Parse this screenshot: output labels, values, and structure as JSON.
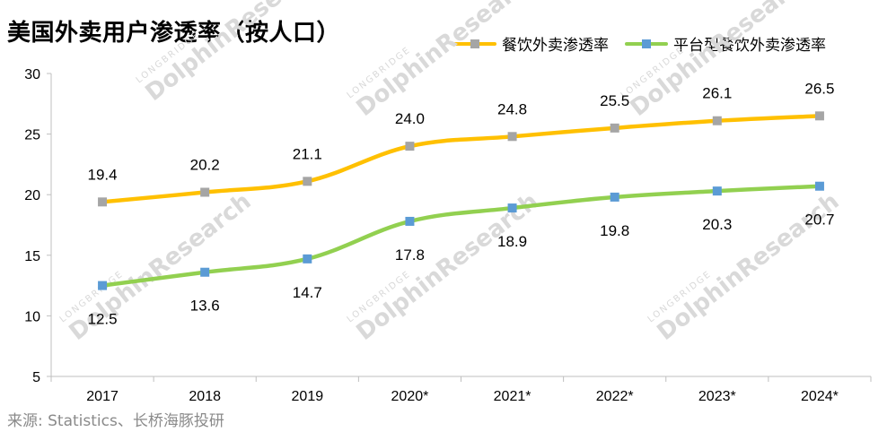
{
  "title": "美国外卖用户渗透率（按人口）",
  "source": "来源: Statistics、长桥海豚投研",
  "watermark": {
    "small": "LONGBRIDGE",
    "large": "DolphinResearch"
  },
  "colors": {
    "series1": "#FFC000",
    "series1_marker": "#A5A5A5",
    "series2": "#92D050",
    "series2_marker": "#5B9BD5",
    "axis": "#bfbfbf"
  },
  "chart_data": {
    "type": "line",
    "title": "美国外卖用户渗透率（按人口）",
    "categories": [
      "2017",
      "2018",
      "2019",
      "2020*",
      "2021*",
      "2022*",
      "2023*",
      "2024*"
    ],
    "ylim": [
      5,
      30
    ],
    "yticks": [
      5,
      10,
      15,
      20,
      25,
      30
    ],
    "grid": false,
    "legend": "top-right",
    "series": [
      {
        "name": "餐饮外卖渗透率",
        "values": [
          19.4,
          20.2,
          21.1,
          24.0,
          24.8,
          25.5,
          26.1,
          26.5
        ],
        "labels": [
          "19.4",
          "20.2",
          "21.1",
          "24.0",
          "24.8",
          "25.5",
          "26.1",
          "26.5"
        ],
        "label_position": "above"
      },
      {
        "name": "平台型餐饮外卖渗透率",
        "values": [
          12.5,
          13.6,
          14.7,
          17.8,
          18.9,
          19.8,
          20.3,
          20.7
        ],
        "labels": [
          "12.5",
          "13.6",
          "14.7",
          "17.8",
          "18.9",
          "19.8",
          "20.3",
          "20.7"
        ],
        "label_position": "below"
      }
    ]
  }
}
